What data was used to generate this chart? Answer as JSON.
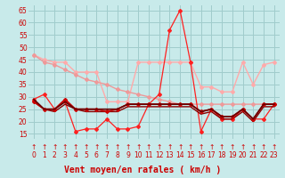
{
  "title": "",
  "xlabel": "Vent moyen/en rafales ( km/h )",
  "bg_color": "#c8eaea",
  "grid_color": "#a0cccc",
  "xlim": [
    -0.5,
    23.5
  ],
  "ylim": [
    13,
    67
  ],
  "yticks": [
    15,
    20,
    25,
    30,
    35,
    40,
    45,
    50,
    55,
    60,
    65
  ],
  "xticks": [
    0,
    1,
    2,
    3,
    4,
    5,
    6,
    7,
    8,
    9,
    10,
    11,
    12,
    13,
    14,
    15,
    16,
    17,
    18,
    19,
    20,
    21,
    22,
    23
  ],
  "series": [
    {
      "y": [
        47,
        45,
        44,
        44,
        40,
        40,
        40,
        28,
        28,
        28,
        44,
        44,
        44,
        44,
        44,
        44,
        34,
        34,
        32,
        32,
        44,
        35,
        43,
        44
      ],
      "color": "#ffaaaa",
      "lw": 1.0,
      "marker": "D",
      "ms": 2.0,
      "zorder": 2
    },
    {
      "y": [
        47,
        44,
        43,
        41,
        39,
        37,
        36,
        35,
        33,
        32,
        31,
        30,
        29,
        28,
        27,
        27,
        27,
        27,
        27,
        27,
        27,
        27,
        27,
        27
      ],
      "color": "#ee9999",
      "lw": 1.0,
      "marker": "D",
      "ms": 2.0,
      "zorder": 2
    },
    {
      "y": [
        29,
        31,
        25,
        28,
        16,
        17,
        17,
        21,
        17,
        17,
        18,
        27,
        31,
        57,
        65,
        44,
        16,
        25,
        21,
        21,
        25,
        21,
        21,
        27
      ],
      "color": "#ff2020",
      "lw": 0.9,
      "marker": "D",
      "ms": 2.0,
      "zorder": 3
    },
    {
      "y": [
        28,
        25,
        25,
        29,
        25,
        25,
        25,
        24,
        25,
        27,
        27,
        27,
        27,
        27,
        27,
        27,
        24,
        25,
        22,
        22,
        25,
        21,
        27,
        27
      ],
      "color": "#cc0000",
      "lw": 1.2,
      "marker": "D",
      "ms": 2.0,
      "zorder": 4
    },
    {
      "y": [
        29,
        25,
        25,
        28,
        25,
        25,
        25,
        25,
        25,
        27,
        27,
        27,
        27,
        27,
        27,
        27,
        24,
        25,
        22,
        22,
        25,
        21,
        27,
        27
      ],
      "color": "#660000",
      "lw": 1.2,
      "marker": null,
      "ms": 0,
      "zorder": 4
    },
    {
      "y": [
        28,
        25,
        24,
        27,
        25,
        24,
        24,
        24,
        24,
        26,
        26,
        26,
        26,
        26,
        26,
        26,
        23,
        24,
        21,
        21,
        24,
        20,
        26,
        26
      ],
      "color": "#880000",
      "lw": 1.0,
      "marker": null,
      "ms": 0,
      "zorder": 3
    }
  ],
  "arrow_color": "#cc0000",
  "xlabel_fontsize": 7,
  "xlabel_color": "#cc0000",
  "tick_fontsize": 5.5,
  "tick_color": "#cc0000",
  "figsize": [
    3.2,
    2.0
  ],
  "dpi": 100
}
